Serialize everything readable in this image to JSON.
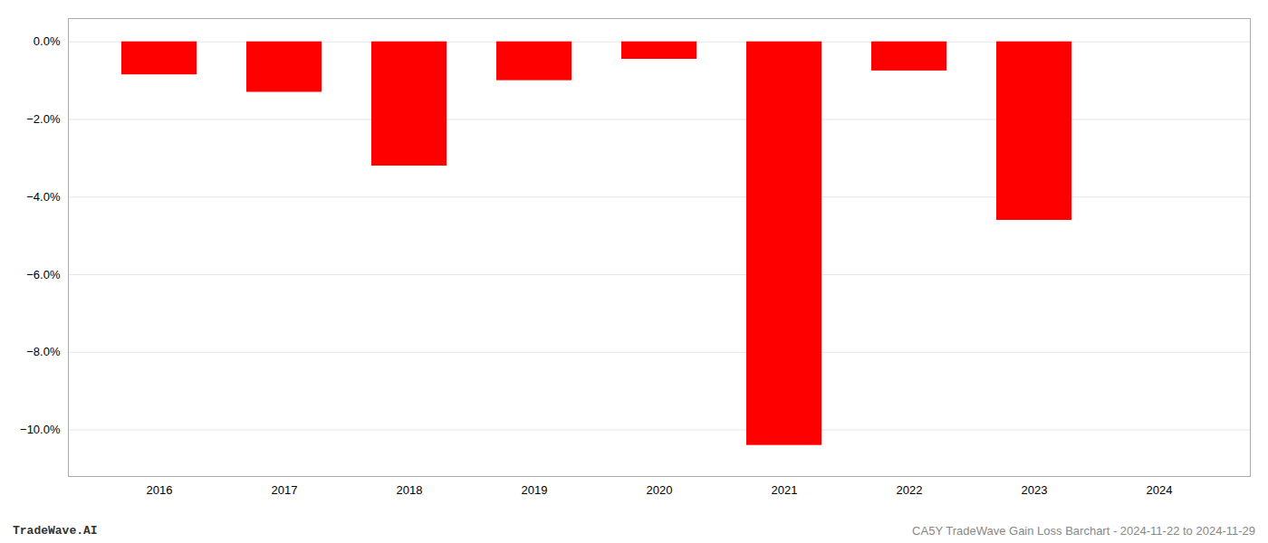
{
  "chart_data": {
    "type": "bar",
    "categories": [
      "2016",
      "2017",
      "2018",
      "2019",
      "2020",
      "2021",
      "2022",
      "2023",
      "2024"
    ],
    "values": [
      -0.0085,
      -0.013,
      -0.032,
      -0.01,
      -0.0045,
      -0.104,
      -0.0075,
      -0.046,
      0.0
    ],
    "color": "#ff0000",
    "ylim": [
      -0.112,
      0.006
    ],
    "yticks": [
      {
        "value": 0.0,
        "label": "0.0%"
      },
      {
        "value": -0.02,
        "label": "−2.0%"
      },
      {
        "value": -0.04,
        "label": "−4.0%"
      },
      {
        "value": -0.06,
        "label": "−6.0%"
      },
      {
        "value": -0.08,
        "label": "−8.0%"
      },
      {
        "value": -0.1,
        "label": "−10.0%"
      }
    ],
    "grid": true,
    "annotations": [
      "TradeWave.AI",
      "CA5Y TradeWave Gain Loss Barchart - 2024-11-22 to 2024-11-29"
    ]
  }
}
